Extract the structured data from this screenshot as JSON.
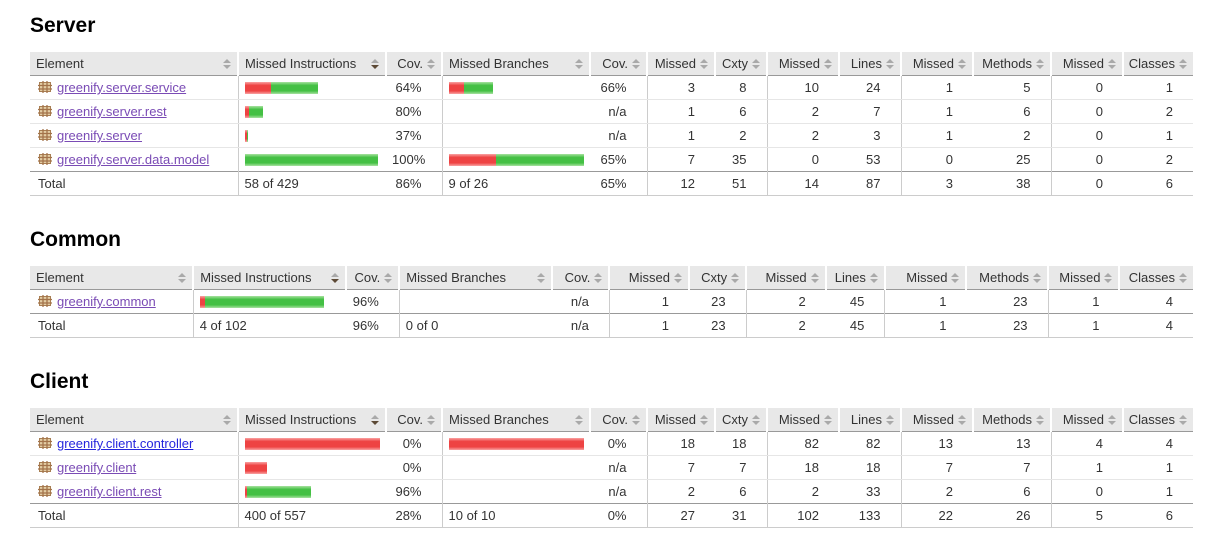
{
  "colors": {
    "bar_red": "#ee4343",
    "bar_green": "#44c044",
    "header_bg": "#e8e8e8",
    "link_blue": "#2626dd",
    "link_visited_purple": "#7a4bb5",
    "sort_active": "#5d4a36"
  },
  "sort_state": {
    "column": "Missed Instructions",
    "direction": "desc"
  },
  "headers": [
    {
      "label": "Element",
      "sort": "none"
    },
    {
      "label": "Missed Instructions",
      "sort": "desc"
    },
    {
      "label": "Cov.",
      "sort": "none"
    },
    {
      "label": "Missed Branches",
      "sort": "none"
    },
    {
      "label": "Cov.",
      "sort": "none"
    },
    {
      "label": "Missed",
      "sort": "none"
    },
    {
      "label": "Cxty",
      "sort": "none"
    },
    {
      "label": "Missed",
      "sort": "none"
    },
    {
      "label": "Lines",
      "sort": "none"
    },
    {
      "label": "Missed",
      "sort": "none"
    },
    {
      "label": "Methods",
      "sort": "none"
    },
    {
      "label": "Missed",
      "sort": "none"
    },
    {
      "label": "Classes",
      "sort": "none"
    }
  ],
  "sections": [
    {
      "title": "Server",
      "rows": [
        {
          "element": "greenify.server.service",
          "link_state": "visited",
          "bars": {
            "instructions": {
              "missed": 26,
              "covered": 47
            },
            "branches": {
              "missed": 15,
              "covered": 29
            }
          },
          "values": [
            "64%",
            "66%",
            "3",
            "8",
            "10",
            "24",
            "1",
            "5",
            "0",
            "1"
          ]
        },
        {
          "element": "greenify.server.rest",
          "link_state": "visited",
          "bars": {
            "instructions": {
              "missed": 4,
              "covered": 14
            },
            "branches": {
              "missed": 0,
              "covered": 0
            }
          },
          "values": [
            "80%",
            "n/a",
            "1",
            "6",
            "2",
            "7",
            "1",
            "6",
            "0",
            "2"
          ]
        },
        {
          "element": "greenify.server",
          "link_state": "visited",
          "bars": {
            "instructions": {
              "missed": 2,
              "covered": 1
            },
            "branches": {
              "missed": 0,
              "covered": 0
            }
          },
          "values": [
            "37%",
            "n/a",
            "1",
            "2",
            "2",
            "3",
            "1",
            "2",
            "0",
            "1"
          ]
        },
        {
          "element": "greenify.server.data.model",
          "link_state": "visited",
          "bars": {
            "instructions": {
              "missed": 0,
              "covered": 133
            },
            "branches": {
              "missed": 49,
              "covered": 92
            }
          },
          "values": [
            "100%",
            "65%",
            "7",
            "35",
            "0",
            "53",
            "0",
            "25",
            "0",
            "2"
          ]
        }
      ],
      "total": {
        "label": "Total",
        "values": [
          "58 of 429",
          "86%",
          "9 of 26",
          "65%",
          "12",
          "51",
          "14",
          "87",
          "3",
          "38",
          "0",
          "6"
        ]
      }
    },
    {
      "title": "Common",
      "rows": [
        {
          "element": "greenify.common",
          "link_state": "visited",
          "bars": {
            "instructions": {
              "missed": 5,
              "covered": 119
            },
            "branches": {
              "missed": 0,
              "covered": 0
            }
          },
          "values": [
            "96%",
            "n/a",
            "1",
            "23",
            "2",
            "45",
            "1",
            "23",
            "1",
            "4"
          ]
        }
      ],
      "total": {
        "label": "Total",
        "values": [
          "4 of 102",
          "96%",
          "0 of 0",
          "n/a",
          "1",
          "23",
          "2",
          "45",
          "1",
          "23",
          "1",
          "4"
        ]
      }
    },
    {
      "title": "Client",
      "rows": [
        {
          "element": "greenify.client.controller",
          "link_state": "unvisited",
          "bars": {
            "instructions": {
              "missed": 141,
              "covered": 0
            },
            "branches": {
              "missed": 144,
              "covered": 0
            }
          },
          "values": [
            "0%",
            "0%",
            "18",
            "18",
            "82",
            "82",
            "13",
            "13",
            "4",
            "4"
          ]
        },
        {
          "element": "greenify.client",
          "link_state": "visited",
          "bars": {
            "instructions": {
              "missed": 22,
              "covered": 0
            },
            "branches": {
              "missed": 0,
              "covered": 0
            }
          },
          "values": [
            "0%",
            "n/a",
            "7",
            "7",
            "18",
            "18",
            "7",
            "7",
            "1",
            "1"
          ]
        },
        {
          "element": "greenify.client.rest",
          "link_state": "visited",
          "bars": {
            "instructions": {
              "missed": 2,
              "covered": 64
            },
            "branches": {
              "missed": 0,
              "covered": 0
            }
          },
          "values": [
            "96%",
            "n/a",
            "2",
            "6",
            "2",
            "33",
            "2",
            "6",
            "0",
            "1"
          ]
        }
      ],
      "total": {
        "label": "Total",
        "values": [
          "400 of 557",
          "28%",
          "10 of 10",
          "0%",
          "27",
          "31",
          "102",
          "133",
          "22",
          "26",
          "5",
          "6"
        ]
      }
    }
  ]
}
